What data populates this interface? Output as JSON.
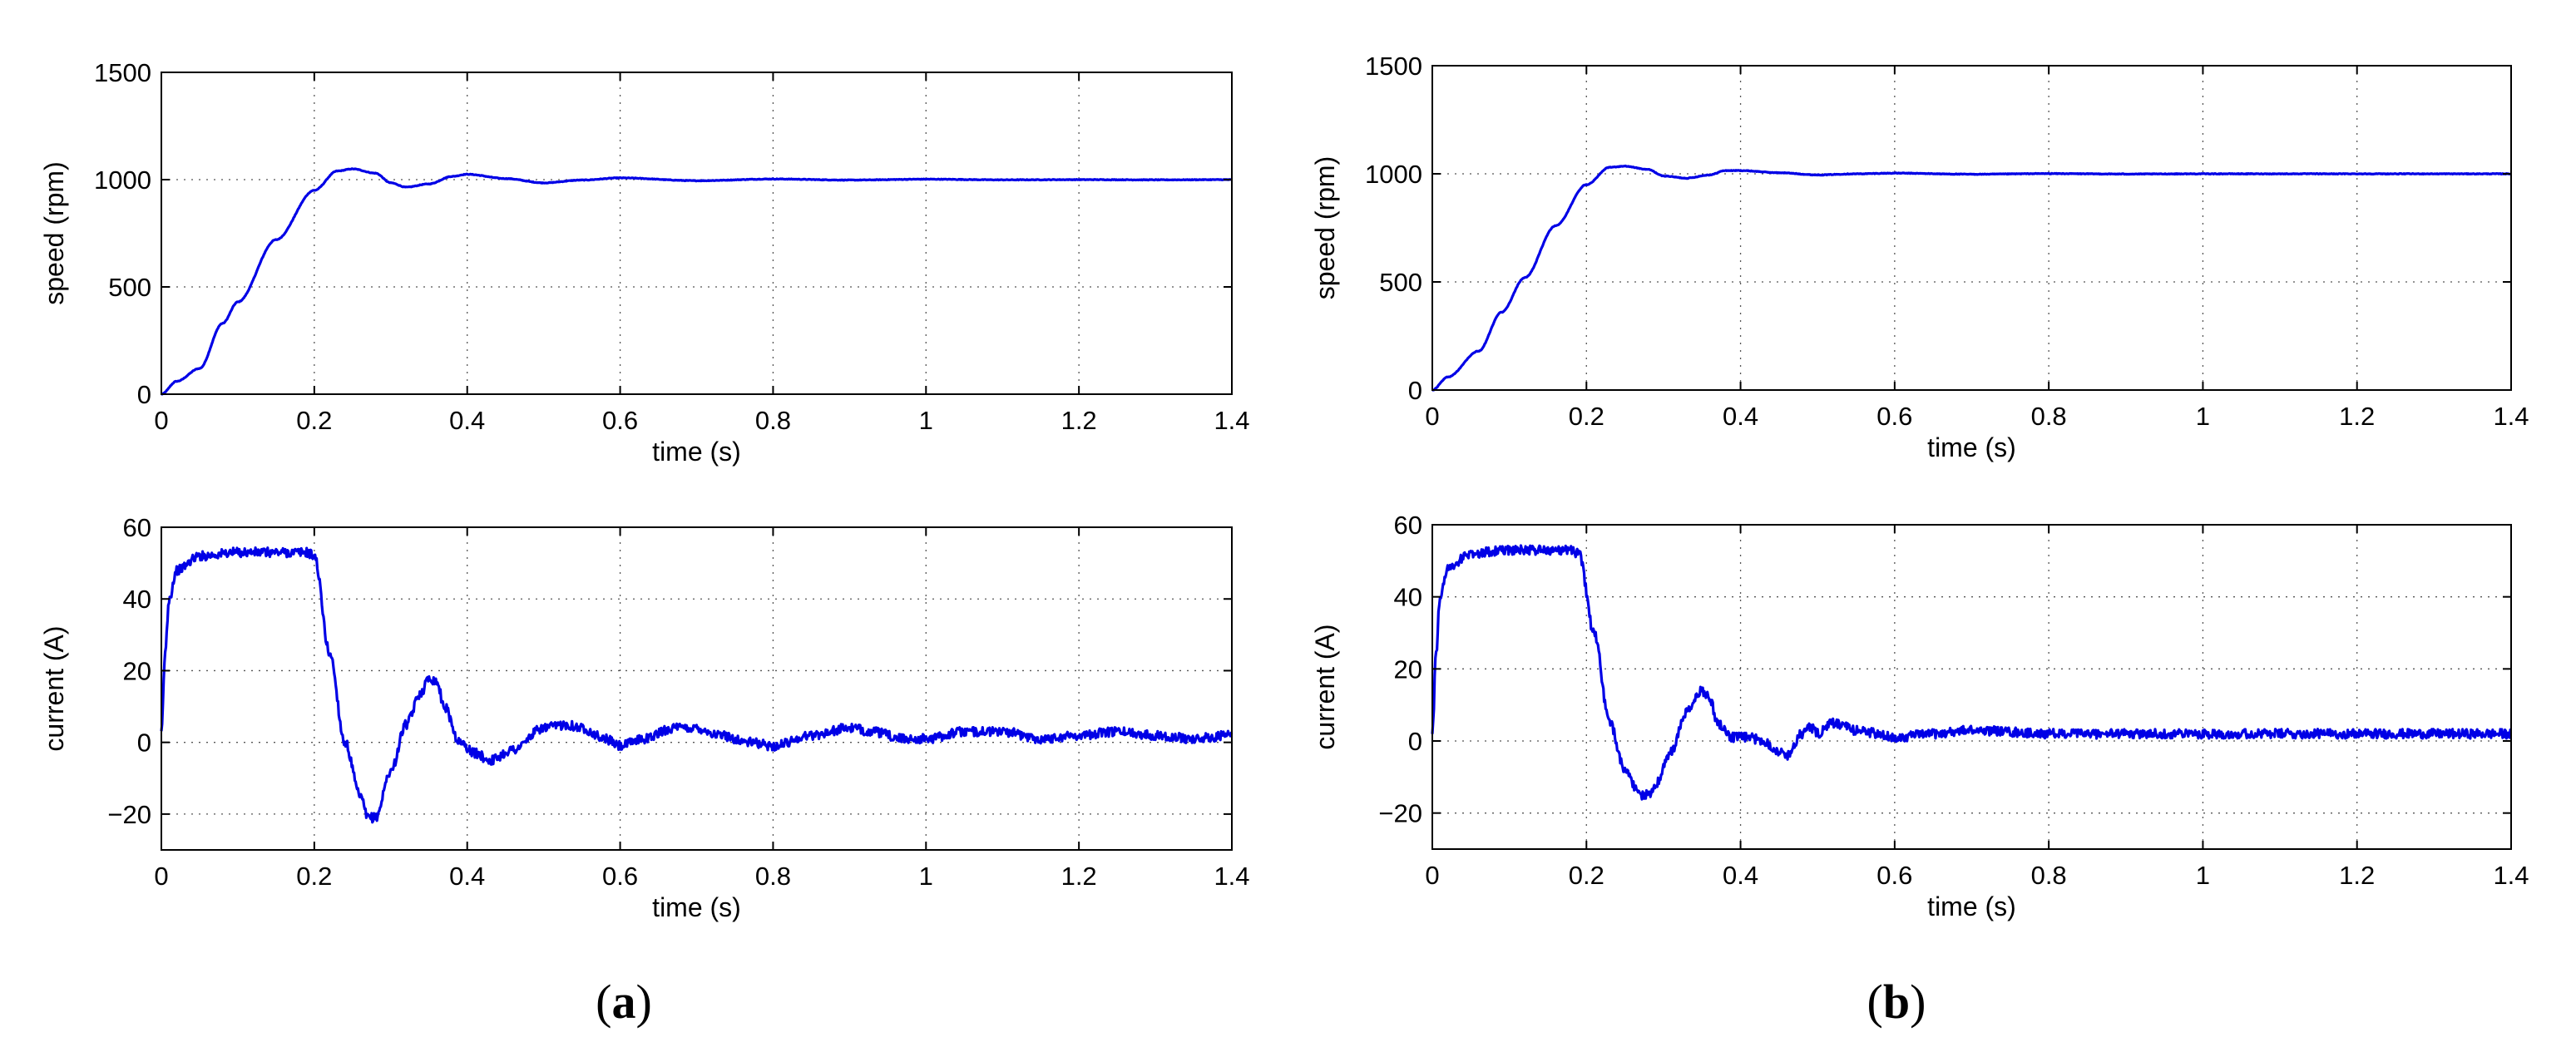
{
  "chart_data": [
    {
      "type": "line",
      "panel": "a",
      "xlabel": "time (s)",
      "ylabel": "speed (rpm)",
      "xlim": [
        0,
        1.4
      ],
      "ylim": [
        0,
        1500
      ],
      "xticks": [
        "0",
        "0.2",
        "0.4",
        "0.6",
        "0.8",
        "1",
        "1.2",
        "1.4"
      ],
      "yticks": [
        "0",
        "500",
        "1000",
        "1500"
      ],
      "grid": true,
      "color": "#0000e6",
      "x": [
        0,
        0.02,
        0.05,
        0.08,
        0.1,
        0.15,
        0.2,
        0.23,
        0.25,
        0.28,
        0.3,
        0.32,
        0.35,
        0.38,
        0.4,
        0.45,
        0.5,
        0.55,
        0.6,
        0.7,
        0.8,
        0.9,
        1.0,
        1.1,
        1.2,
        1.3,
        1.4
      ],
      "y": [
        0,
        60,
        120,
        330,
        430,
        720,
        950,
        1040,
        1050,
        1030,
        985,
        965,
        980,
        1015,
        1025,
        1005,
        985,
        998,
        1008,
        995,
        1003,
        998,
        1002,
        999,
        1000,
        999,
        1000
      ]
    },
    {
      "type": "line",
      "panel": "a",
      "xlabel": "time (s)",
      "ylabel": "current (A)",
      "xlim": [
        0,
        1.4
      ],
      "ylim": [
        -30,
        60
      ],
      "xticks": [
        "0",
        "0.2",
        "0.4",
        "0.6",
        "0.8",
        "1",
        "1.2",
        "1.4"
      ],
      "yticks": [
        "−20",
        "0",
        "20",
        "40",
        "60"
      ],
      "grid": true,
      "color": "#0000e6",
      "x": [
        0,
        0.005,
        0.01,
        0.02,
        0.05,
        0.1,
        0.15,
        0.19,
        0.2,
        0.22,
        0.24,
        0.26,
        0.27,
        0.28,
        0.3,
        0.32,
        0.34,
        0.35,
        0.36,
        0.37,
        0.39,
        0.41,
        0.43,
        0.46,
        0.5,
        0.53,
        0.55,
        0.58,
        0.6,
        0.63,
        0.67,
        0.7,
        0.73,
        0.77,
        0.8,
        0.85,
        0.9,
        0.93,
        0.97,
        1.0,
        1.05,
        1.1,
        1.15,
        1.2,
        1.25,
        1.3,
        1.35,
        1.4
      ],
      "y": [
        2,
        25,
        40,
        48,
        52,
        53,
        53,
        53,
        52,
        25,
        0,
        -15,
        -21,
        -21,
        -8,
        5,
        14,
        18,
        17,
        10,
        0,
        -3,
        -5,
        -2,
        4,
        5,
        4,
        1,
        -1,
        1,
        4,
        4,
        2,
        0,
        -1,
        2,
        4,
        3,
        1,
        1,
        3,
        3,
        1,
        2,
        3,
        2,
        1,
        2
      ]
    },
    {
      "type": "line",
      "panel": "b",
      "xlabel": "time (s)",
      "ylabel": "speed (rpm)",
      "xlim": [
        0,
        1.4
      ],
      "ylim": [
        0,
        1500
      ],
      "xticks": [
        "0",
        "0.2",
        "0.4",
        "0.6",
        "0.8",
        "1",
        "1.2",
        "1.4"
      ],
      "yticks": [
        "0",
        "500",
        "1000",
        "1500"
      ],
      "grid": true,
      "color": "#0000e6",
      "x": [
        0,
        0.02,
        0.06,
        0.09,
        0.12,
        0.16,
        0.2,
        0.23,
        0.25,
        0.28,
        0.3,
        0.33,
        0.36,
        0.38,
        0.4,
        0.45,
        0.5,
        0.55,
        0.6,
        0.7,
        0.8,
        0.9,
        1.0,
        1.1,
        1.2,
        1.3,
        1.4
      ],
      "y": [
        0,
        60,
        180,
        360,
        520,
        760,
        950,
        1030,
        1035,
        1020,
        990,
        980,
        995,
        1015,
        1015,
        1005,
        995,
        1000,
        1003,
        998,
        1001,
        999,
        1000,
        1000,
        1000,
        1000,
        1000
      ]
    },
    {
      "type": "line",
      "panel": "b",
      "xlabel": "time (s)",
      "ylabel": "current (A)",
      "xlim": [
        0,
        1.4
      ],
      "ylim": [
        -30,
        60
      ],
      "xticks": [
        "0",
        "0.2",
        "0.4",
        "0.6",
        "0.8",
        "1",
        "1.2",
        "1.4"
      ],
      "yticks": [
        "−20",
        "0",
        "20",
        "40",
        "60"
      ],
      "grid": true,
      "color": "#0000e6",
      "x": [
        0,
        0.005,
        0.01,
        0.02,
        0.05,
        0.1,
        0.15,
        0.18,
        0.19,
        0.21,
        0.23,
        0.25,
        0.27,
        0.28,
        0.29,
        0.31,
        0.33,
        0.35,
        0.36,
        0.37,
        0.39,
        0.41,
        0.43,
        0.45,
        0.46,
        0.48,
        0.49,
        0.5,
        0.52,
        0.55,
        0.6,
        0.65,
        0.7,
        0.8,
        0.9,
        1.0,
        1.1,
        1.2,
        1.3,
        1.4
      ],
      "y": [
        2,
        25,
        40,
        48,
        52,
        53,
        53,
        53,
        52,
        30,
        5,
        -8,
        -15,
        -15,
        -12,
        -3,
        8,
        14,
        12,
        5,
        1,
        1,
        0,
        -3,
        -4,
        2,
        4,
        2,
        5,
        3,
        1,
        2,
        3,
        2,
        2,
        2,
        2,
        2,
        2,
        2
      ]
    }
  ],
  "panel_labels": {
    "a": {
      "open": "(",
      "letter": "a",
      "close": ")"
    },
    "b": {
      "open": "(",
      "letter": "b",
      "close": ")"
    }
  }
}
